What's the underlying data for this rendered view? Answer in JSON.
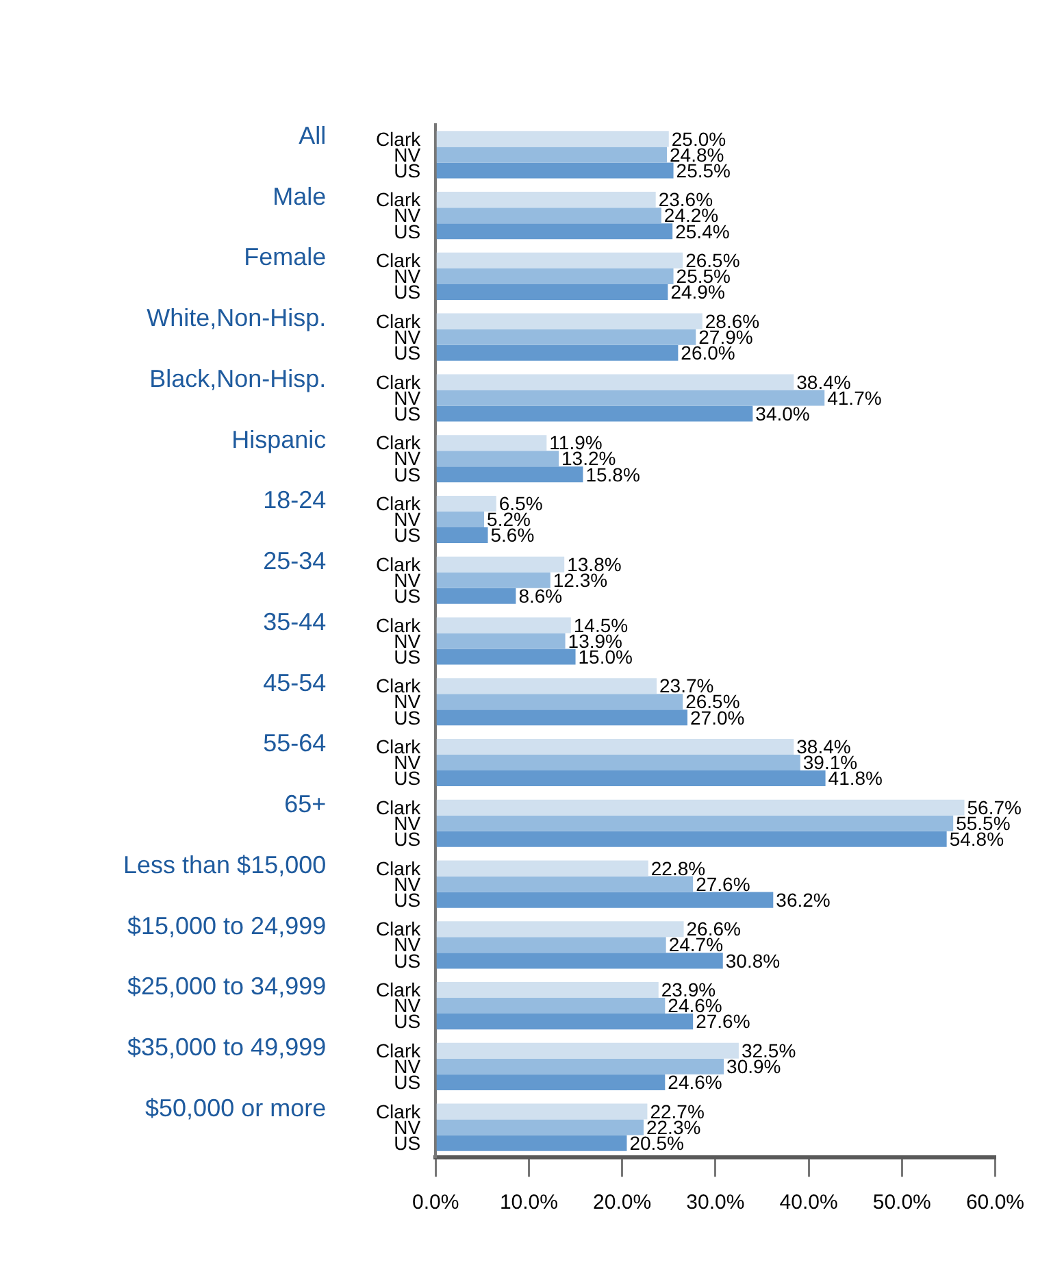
{
  "chart_data": {
    "type": "bar",
    "orientation": "horizontal",
    "categories": [
      "All",
      "Male",
      "Female",
      "White,Non-Hisp.",
      "Black,Non-Hisp.",
      "Hispanic",
      "18-24",
      "25-34",
      "35-44",
      "45-54",
      "55-64",
      "65+",
      "Less than $15,000",
      "$15,000 to 24,999",
      "$25,000 to 34,999",
      "$35,000 to 49,999",
      "$50,000 or more"
    ],
    "series": [
      {
        "name": "Clark",
        "color": "#d0e0ef",
        "values": [
          25.0,
          23.6,
          26.5,
          28.6,
          38.4,
          11.9,
          6.5,
          13.8,
          14.5,
          23.7,
          38.4,
          56.7,
          22.8,
          26.6,
          23.9,
          32.5,
          22.7
        ],
        "value_labels": [
          "25.0%",
          "23.6%",
          "26.5%",
          "28.6%",
          "38.4%",
          "11.9%",
          "6.5%",
          "13.8%",
          "14.5%",
          "23.7%",
          "38.4%",
          "56.7%",
          "22.8%",
          "26.6%",
          "23.9%",
          "32.5%",
          "22.7%"
        ]
      },
      {
        "name": "NV",
        "color": "#95bbdf",
        "values": [
          24.8,
          24.2,
          25.5,
          27.9,
          41.7,
          13.2,
          5.2,
          12.3,
          13.9,
          26.5,
          39.1,
          55.5,
          27.6,
          24.7,
          24.6,
          30.9,
          22.3
        ],
        "value_labels": [
          "24.8%",
          "24.2%",
          "25.5%",
          "27.9%",
          "41.7%",
          "13.2%",
          "5.2%",
          "12.3%",
          "13.9%",
          "26.5%",
          "39.1%",
          "55.5%",
          "27.6%",
          "24.7%",
          "24.6%",
          "30.9%",
          "22.3%"
        ]
      },
      {
        "name": "US",
        "color": "#6399cf",
        "values": [
          25.5,
          25.4,
          24.9,
          26.0,
          34.0,
          15.8,
          5.6,
          8.6,
          15.0,
          27.0,
          41.8,
          54.8,
          36.2,
          30.8,
          27.6,
          24.6,
          20.5
        ],
        "value_labels": [
          "25.5%",
          "25.4%",
          "24.9%",
          "26.0%",
          "34.0%",
          "15.8%",
          "5.6%",
          "8.6%",
          "15.0%",
          "27.0%",
          "41.8%",
          "54.8%",
          "36.2%",
          "30.8%",
          "27.6%",
          "24.6%",
          "20.5%"
        ]
      }
    ],
    "xlim": [
      0,
      60
    ],
    "xticks": [
      {
        "value": 0,
        "label": "0.0%"
      },
      {
        "value": 10,
        "label": "10.0%"
      },
      {
        "value": 20,
        "label": "20.0%"
      },
      {
        "value": 30,
        "label": "30.0%"
      },
      {
        "value": 40,
        "label": "40.0%"
      },
      {
        "value": 50,
        "label": "50.0%"
      },
      {
        "value": 60,
        "label": "60.0%"
      }
    ],
    "grid": false
  }
}
